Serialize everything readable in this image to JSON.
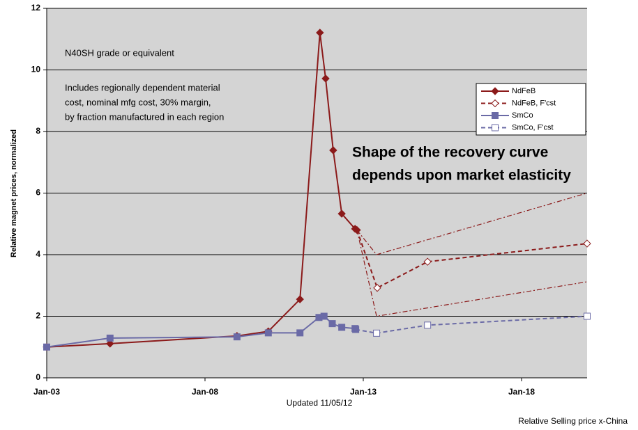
{
  "chart_data": {
    "type": "line",
    "y_label": "Relative magnet prices, normalized",
    "xlim": [
      2003,
      2020.07
    ],
    "xticks": [
      {
        "value": 2003,
        "label": "Jan-03"
      },
      {
        "value": 2008,
        "label": "Jan-08"
      },
      {
        "value": 2013,
        "label": "Jan-13"
      },
      {
        "value": 2018,
        "label": "Jan-18"
      }
    ],
    "ylim": [
      0,
      12
    ],
    "yticks": [
      0,
      2,
      4,
      6,
      8,
      10,
      12
    ],
    "grid": true,
    "legend": "upper right",
    "series": [
      {
        "name": "NdFeB",
        "color": "#8b1a1a",
        "style": "solid",
        "marker": "filled-diamond",
        "x": [
          2003,
          2005,
          2009.01,
          2010,
          2011,
          2011.63,
          2011.81,
          2012.05,
          2012.32,
          2012.74,
          2012.8
        ],
        "values": [
          1.0,
          1.11,
          1.36,
          1.51,
          2.55,
          11.21,
          9.72,
          7.39,
          5.33,
          4.84,
          4.8
        ]
      },
      {
        "name": "NdFeB, F'cst",
        "color": "#8b1a1a",
        "style": "dashed",
        "marker": "open-diamond",
        "x": [
          2013.44,
          2015.03,
          2020.07
        ],
        "values": [
          2.92,
          3.77,
          4.36
        ]
      },
      {
        "name": "SmCo",
        "color": "#6a6aa6",
        "style": "solid",
        "marker": "filled-square",
        "x": [
          2003,
          2005,
          2009.01,
          2010,
          2011,
          2011.6,
          2011.76,
          2012.02,
          2012.32,
          2012.74,
          2012.76
        ],
        "values": [
          1.0,
          1.29,
          1.33,
          1.46,
          1.46,
          1.96,
          2.0,
          1.76,
          1.64,
          1.6,
          1.57
        ]
      },
      {
        "name": "SmCo, F'cst",
        "color": "#6a6aa6",
        "style": "dashed",
        "marker": "open-square",
        "x": [
          2013.42,
          2015.03,
          2020.07
        ],
        "values": [
          1.45,
          1.71,
          2.0
        ]
      }
    ],
    "envelope": [
      {
        "x": [
          2012.8,
          2013.42,
          2020.07
        ],
        "values": [
          4.8,
          4.0,
          6.0
        ]
      },
      {
        "x": [
          2012.8,
          2013.42,
          2020.07
        ],
        "values": [
          4.8,
          2.0,
          3.12
        ]
      }
    ],
    "annotations": {
      "grade": "N40SH grade or equivalent",
      "includes": [
        "Includes regionally dependent material",
        "cost, nominal mfg cost, 30% margin,",
        "by fraction manufactured in each region"
      ],
      "shape": [
        "Shape of the recovery curve",
        "depends upon market elasticity"
      ],
      "updated": "Updated 11/05/12",
      "source": "Relative Selling price x-China"
    }
  }
}
